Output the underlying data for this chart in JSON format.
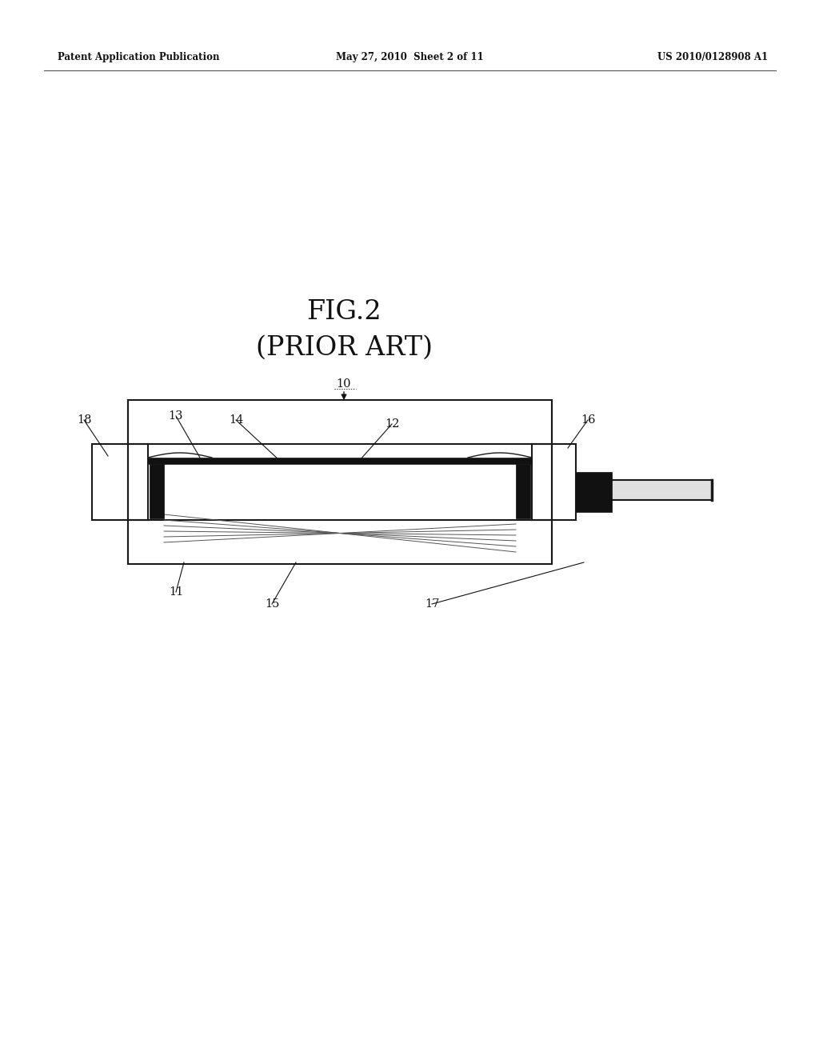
{
  "background_color": "#ffffff",
  "header_left": "Patent Application Publication",
  "header_center": "May 27, 2010  Sheet 2 of 11",
  "header_right": "US 2010/0128908 A1",
  "fig_title_line1": "FIG.2",
  "fig_title_line2": "(PRIOR ART)"
}
